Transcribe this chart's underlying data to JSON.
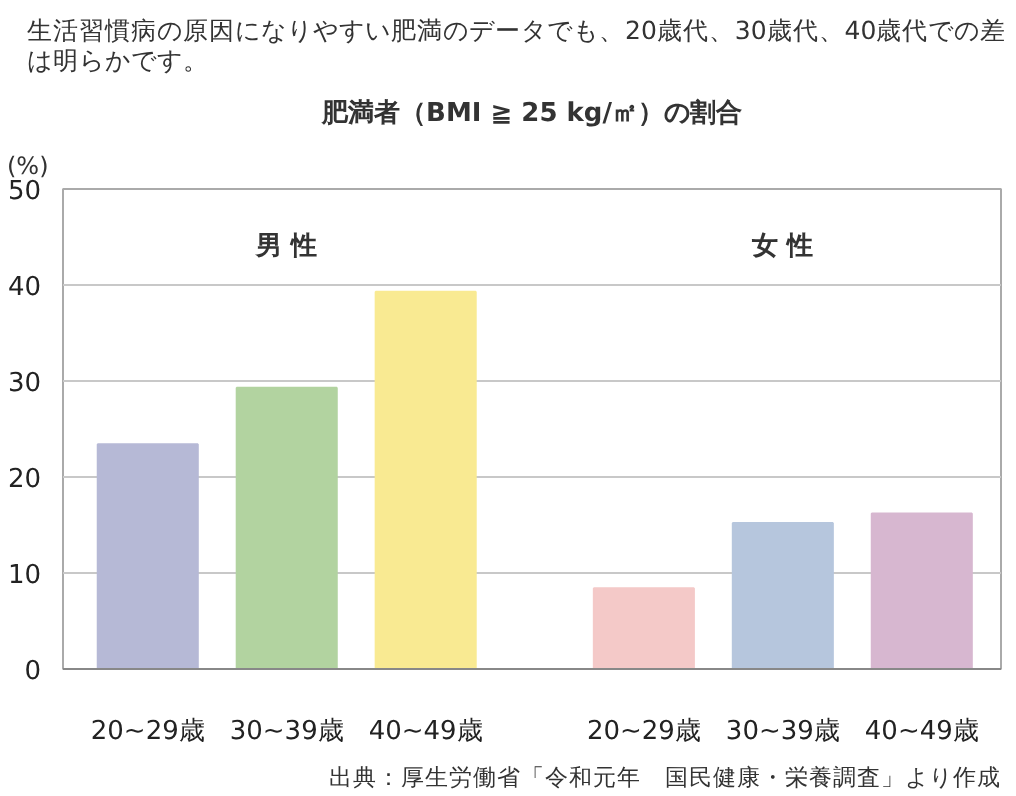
{
  "chart_data": {
    "type": "bar",
    "subtitle": "生活習慣病の原因になりやすい肥満のデータでも、20歳代、30歳代、40歳代での差は明らかです。",
    "title": "肥満者（BMI ≧ 25 kg/㎡）の割合",
    "ylabel": "(%)",
    "categories": [
      "20~29歳",
      "30~39歳",
      "40~49歳",
      "20~29歳",
      "30~39歳",
      "40~49歳"
    ],
    "values": [
      23.4,
      29.3,
      39.3,
      8.4,
      15.2,
      16.2
    ],
    "colors": [
      "#b6b9d6",
      "#b2d3a0",
      "#f9ea92",
      "#f4c9c8",
      "#b6c6dd",
      "#d7b7d0"
    ],
    "ylim": [
      0,
      50
    ],
    "yticks": [
      0,
      10,
      20,
      30,
      40,
      50
    ],
    "grid": "y",
    "annotations": [
      "男 性",
      "女 性",
      "出典：厚生労働省「令和元年　国民健康・栄養調査」より作成"
    ]
  }
}
